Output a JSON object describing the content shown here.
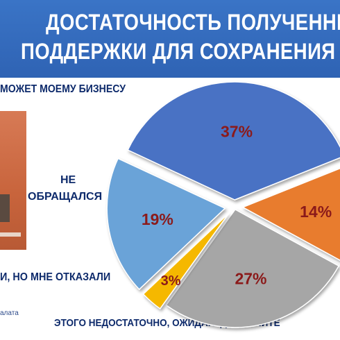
{
  "header": {
    "title_line1": "ДОСТАТОЧНОСТЬ ПОЛУЧЕННЫ",
    "title_line2": "ПОДДЕРЖКИ ДЛЯ СОХРАНЕНИЯ Б"
  },
  "labels": {
    "top": "МОЖЕТ МОЕМУ БИЗНЕСУ",
    "ne_line1": "НЕ",
    "ne_line2": "ОБРАЩАЛСЯ",
    "refused": "И, НО МНЕ ОТКАЗАЛИ",
    "bottom": "ЭТОГО НЕДОСТАТОЧНО, ОЖИДАЮ ДОПОЛНИТЕ"
  },
  "source_text": "алата",
  "chart_data": {
    "type": "pie",
    "title": "",
    "slices": [
      {
        "label": "37%",
        "value": 37,
        "color": "#4a72c4"
      },
      {
        "label": "14%",
        "value": 14,
        "color": "#e87b2f"
      },
      {
        "label": "27%",
        "value": 27,
        "color": "#a6a6a6"
      },
      {
        "label": "3%",
        "value": 3,
        "color": "#f5b800"
      },
      {
        "label": "19%",
        "value": 19,
        "color": "#6aa3d8"
      }
    ],
    "label_color": "#8b1a1a"
  }
}
